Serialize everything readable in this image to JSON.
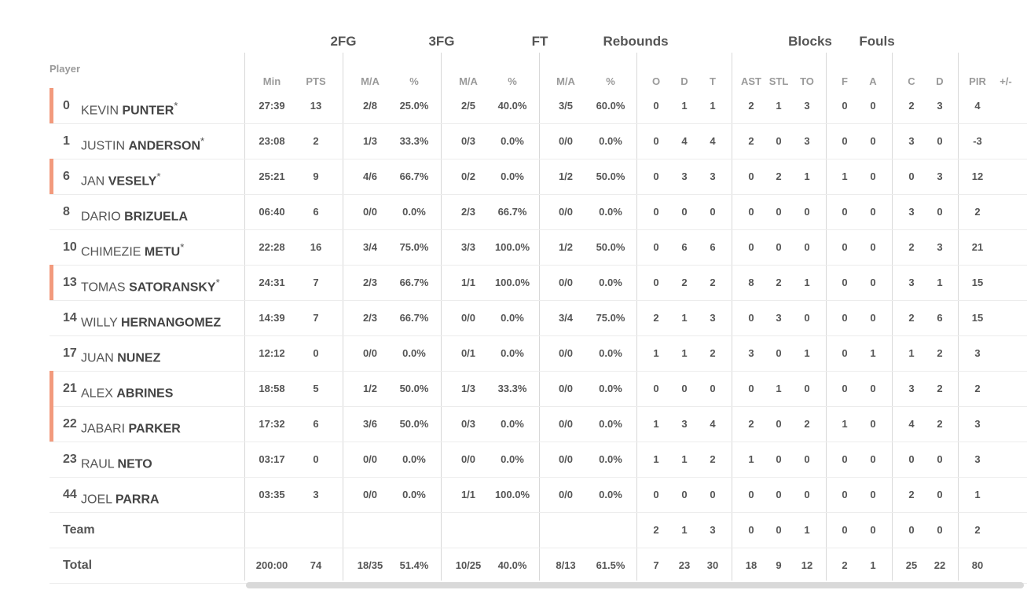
{
  "groups": [
    {
      "label": "2FG",
      "cx": 437
    },
    {
      "label": "3FG",
      "cx": 562
    },
    {
      "label": "FT",
      "cx": 687
    },
    {
      "label": "Rebounds",
      "cx": 809
    },
    {
      "label": "Blocks",
      "cx": 1031
    },
    {
      "label": "Fouls",
      "cx": 1116
    }
  ],
  "player_header": "Player",
  "columns": [
    "Min",
    "PTS",
    "M/A",
    "%",
    "M/A",
    "%",
    "M/A",
    "%",
    "O",
    "D",
    "T",
    "AST",
    "STL",
    "TO",
    "F",
    "A",
    "C",
    "D",
    "PIR",
    "+/-"
  ],
  "players": [
    {
      "number": "0",
      "first": "KEVIN",
      "last": "PUNTER",
      "starter": "*",
      "accent": true,
      "stats": [
        "27:39",
        "13",
        "2/8",
        "25.0%",
        "2/5",
        "40.0%",
        "3/5",
        "60.0%",
        "0",
        "1",
        "1",
        "2",
        "1",
        "3",
        "0",
        "0",
        "2",
        "3",
        "4",
        ""
      ]
    },
    {
      "number": "1",
      "first": "JUSTIN",
      "last": "ANDERSON",
      "starter": "*",
      "accent": false,
      "stats": [
        "23:08",
        "2",
        "1/3",
        "33.3%",
        "0/3",
        "0.0%",
        "0/0",
        "0.0%",
        "0",
        "4",
        "4",
        "2",
        "0",
        "3",
        "0",
        "0",
        "3",
        "0",
        "-3",
        ""
      ]
    },
    {
      "number": "6",
      "first": "JAN",
      "last": "VESELY",
      "starter": "*",
      "accent": true,
      "stats": [
        "25:21",
        "9",
        "4/6",
        "66.7%",
        "0/2",
        "0.0%",
        "1/2",
        "50.0%",
        "0",
        "3",
        "3",
        "0",
        "2",
        "1",
        "1",
        "0",
        "0",
        "3",
        "12",
        ""
      ]
    },
    {
      "number": "8",
      "first": "DARIO",
      "last": "BRIZUELA",
      "starter": "",
      "accent": false,
      "stats": [
        "06:40",
        "6",
        "0/0",
        "0.0%",
        "2/3",
        "66.7%",
        "0/0",
        "0.0%",
        "0",
        "0",
        "0",
        "0",
        "0",
        "0",
        "0",
        "0",
        "3",
        "0",
        "2",
        ""
      ]
    },
    {
      "number": "10",
      "first": "CHIMEZIE",
      "last": "METU",
      "starter": "*",
      "accent": false,
      "stats": [
        "22:28",
        "16",
        "3/4",
        "75.0%",
        "3/3",
        "100.0%",
        "1/2",
        "50.0%",
        "0",
        "6",
        "6",
        "0",
        "0",
        "0",
        "0",
        "0",
        "2",
        "3",
        "21",
        ""
      ]
    },
    {
      "number": "13",
      "first": "TOMAS",
      "last": "SATORANSKY",
      "starter": "*",
      "accent": true,
      "stats": [
        "24:31",
        "7",
        "2/3",
        "66.7%",
        "1/1",
        "100.0%",
        "0/0",
        "0.0%",
        "0",
        "2",
        "2",
        "8",
        "2",
        "1",
        "0",
        "0",
        "3",
        "1",
        "15",
        ""
      ]
    },
    {
      "number": "14",
      "first": "WILLY",
      "last": "HERNANGOMEZ",
      "starter": "",
      "accent": false,
      "stats": [
        "14:39",
        "7",
        "2/3",
        "66.7%",
        "0/0",
        "0.0%",
        "3/4",
        "75.0%",
        "2",
        "1",
        "3",
        "0",
        "3",
        "0",
        "0",
        "0",
        "2",
        "6",
        "15",
        ""
      ]
    },
    {
      "number": "17",
      "first": "JUAN",
      "last": "NUNEZ",
      "starter": "",
      "accent": false,
      "stats": [
        "12:12",
        "0",
        "0/0",
        "0.0%",
        "0/1",
        "0.0%",
        "0/0",
        "0.0%",
        "1",
        "1",
        "2",
        "3",
        "0",
        "1",
        "0",
        "1",
        "1",
        "2",
        "3",
        ""
      ]
    },
    {
      "number": "21",
      "first": "ALEX",
      "last": "ABRINES",
      "starter": "",
      "accent": true,
      "stats": [
        "18:58",
        "5",
        "1/2",
        "50.0%",
        "1/3",
        "33.3%",
        "0/0",
        "0.0%",
        "0",
        "0",
        "0",
        "0",
        "1",
        "0",
        "0",
        "0",
        "3",
        "2",
        "2",
        ""
      ]
    },
    {
      "number": "22",
      "first": "JABARI",
      "last": "PARKER",
      "starter": "",
      "accent": true,
      "stats": [
        "17:32",
        "6",
        "3/6",
        "50.0%",
        "0/3",
        "0.0%",
        "0/0",
        "0.0%",
        "1",
        "3",
        "4",
        "2",
        "0",
        "2",
        "1",
        "0",
        "4",
        "2",
        "3",
        ""
      ]
    },
    {
      "number": "23",
      "first": "RAUL",
      "last": "NETO",
      "starter": "",
      "accent": false,
      "stats": [
        "03:17",
        "0",
        "0/0",
        "0.0%",
        "0/0",
        "0.0%",
        "0/0",
        "0.0%",
        "1",
        "1",
        "2",
        "1",
        "0",
        "0",
        "0",
        "0",
        "0",
        "0",
        "3",
        ""
      ]
    },
    {
      "number": "44",
      "first": "JOEL",
      "last": "PARRA",
      "starter": "",
      "accent": false,
      "stats": [
        "03:35",
        "3",
        "0/0",
        "0.0%",
        "1/1",
        "100.0%",
        "0/0",
        "0.0%",
        "0",
        "0",
        "0",
        "0",
        "0",
        "0",
        "0",
        "0",
        "2",
        "0",
        "1",
        ""
      ]
    }
  ],
  "team": {
    "label": "Team",
    "stats": [
      "",
      "",
      "",
      "",
      "",
      "",
      "",
      "",
      "2",
      "1",
      "3",
      "0",
      "0",
      "1",
      "0",
      "0",
      "0",
      "0",
      "2",
      ""
    ]
  },
  "total": {
    "label": "Total",
    "stats": [
      "200:00",
      "74",
      "18/35",
      "51.4%",
      "10/25",
      "40.0%",
      "8/13",
      "61.5%",
      "7",
      "23",
      "30",
      "18",
      "9",
      "12",
      "2",
      "1",
      "25",
      "22",
      "80",
      ""
    ]
  }
}
